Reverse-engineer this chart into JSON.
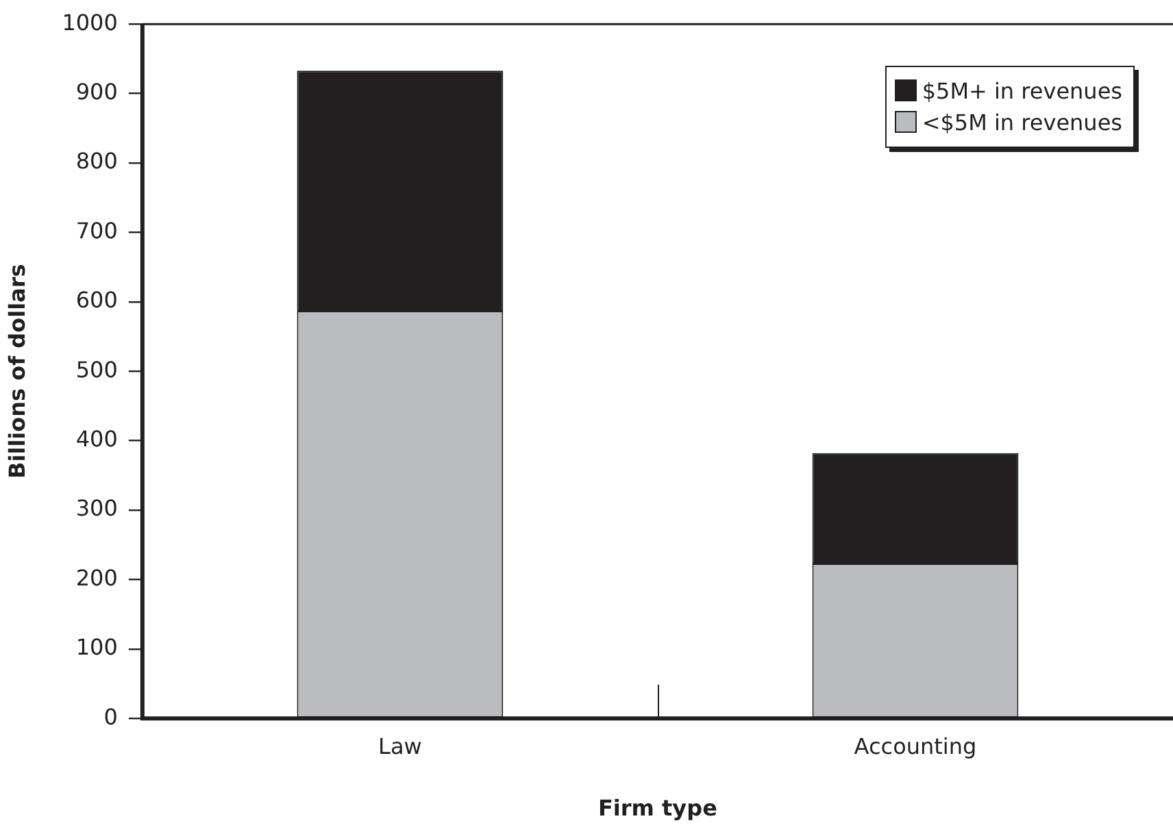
{
  "chart_data": {
    "type": "bar",
    "stacked": true,
    "xlabel": "Firm type",
    "ylabel": "Billions of dollars",
    "categories": [
      "Law",
      "Accounting"
    ],
    "series": [
      {
        "name": "<$5M in revenues",
        "color": "#bbbcbf",
        "values": [
          587,
          223
        ]
      },
      {
        "name": "$5M+ in revenues",
        "color": "#231f20",
        "values": [
          346,
          159
        ]
      }
    ],
    "ylim": [
      0,
      1000
    ],
    "yticks": [
      0,
      100,
      200,
      300,
      400,
      500,
      600,
      700,
      800,
      900,
      1000
    ],
    "grid": false,
    "legend": "top right"
  }
}
